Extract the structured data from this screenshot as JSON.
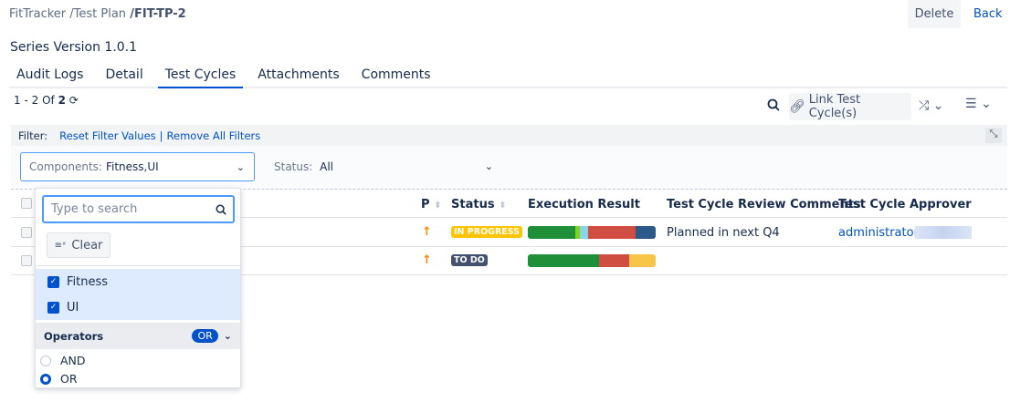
{
  "breadcrumb": {
    "project": "FitTracker",
    "section": "/Test Plan",
    "current": "/FIT-TP-2"
  },
  "header": {
    "delete_label": "Delete",
    "back_label": "Back",
    "series": "Series Version 1.0.1"
  },
  "tabs": [
    {
      "label": "Audit Logs"
    },
    {
      "label": "Detail"
    },
    {
      "label": "Test Cycles",
      "active": true
    },
    {
      "label": "Attachments"
    },
    {
      "label": "Comments"
    }
  ],
  "pagination": {
    "range": "1 - 2",
    "of": "Of",
    "total": "2"
  },
  "toolbar": {
    "link_label": "Link Test Cycle(s)"
  },
  "filter": {
    "label": "Filter:",
    "reset": "Reset Filter Values",
    "separator": "|",
    "remove": "Remove All Filters",
    "components_label": "Components:",
    "components_value": "Fitness,UI",
    "status_label": "Status:",
    "status_value": "All"
  },
  "table": {
    "headers": {
      "p": "P",
      "status": "Status",
      "exec": "Execution Result",
      "comments": "Test Cycle Review Comments",
      "approver": "Test Cycle Approver"
    },
    "rows": [
      {
        "priority": "↑",
        "status": "IN PROGRESS",
        "status_color": "#ffc400",
        "comments": "Planned in next Q4",
        "approver": "administrator",
        "exec": [
          {
            "color": "#1f8f3a",
            "pct": 37
          },
          {
            "color": "#7ed321",
            "pct": 4
          },
          {
            "color": "#8bd3e6",
            "pct": 6
          },
          {
            "color": "#d04d42",
            "pct": 37
          },
          {
            "color": "#2b5a8a",
            "pct": 16
          }
        ]
      },
      {
        "priority": "↑",
        "status": "TO DO",
        "status_color": "#42526e",
        "comments": "",
        "approver": "",
        "exec": [
          {
            "color": "#1f8f3a",
            "pct": 56
          },
          {
            "color": "#d04d42",
            "pct": 23
          },
          {
            "color": "#f7c548",
            "pct": 21
          }
        ]
      }
    ]
  },
  "dropdown": {
    "search_placeholder": "Type to search",
    "clear_label": "Clear",
    "options": [
      {
        "label": "Fitness",
        "checked": true
      },
      {
        "label": "UI",
        "checked": true
      }
    ],
    "operators_label": "Operators",
    "operator_value": "OR",
    "and_label": "AND",
    "or_label": "OR"
  }
}
